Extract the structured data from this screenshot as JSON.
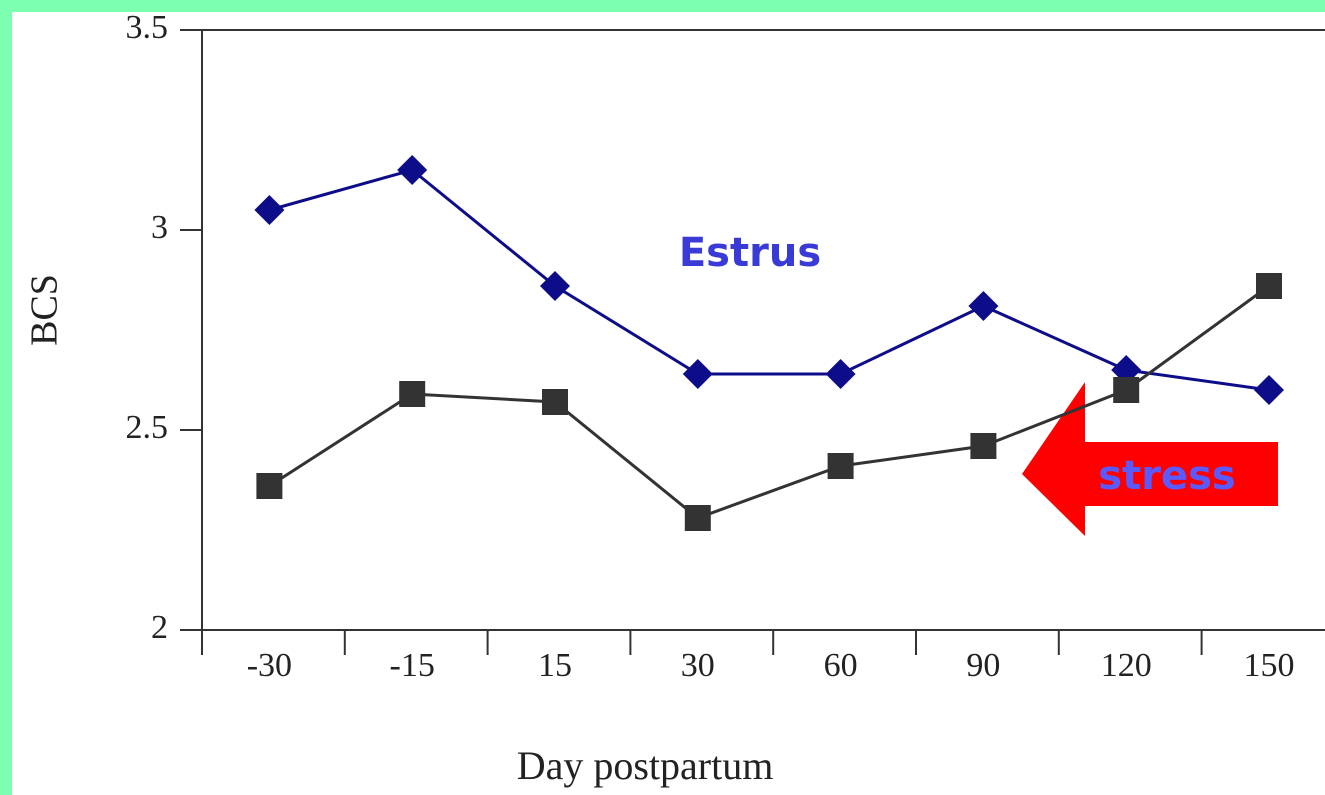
{
  "chart_data": {
    "type": "line",
    "x_label": "Day postpartum",
    "y_label": "BCS",
    "categories": [
      "-30",
      "-15",
      "15",
      "30",
      "60",
      "90",
      "120",
      "150"
    ],
    "series": [
      {
        "name": "Estrus",
        "color": "#0d0d8a",
        "marker": "diamond",
        "values": [
          3.05,
          3.15,
          2.86,
          2.64,
          2.64,
          2.81,
          2.65,
          2.6
        ]
      },
      {
        "name": "stress",
        "color": "#333333",
        "marker": "square",
        "values": [
          2.36,
          2.59,
          2.57,
          2.28,
          2.41,
          2.46,
          2.6,
          2.86
        ]
      }
    ],
    "ylim": [
      2,
      3.5
    ],
    "yticks": [
      2,
      2.5,
      3,
      3.5
    ]
  }
}
